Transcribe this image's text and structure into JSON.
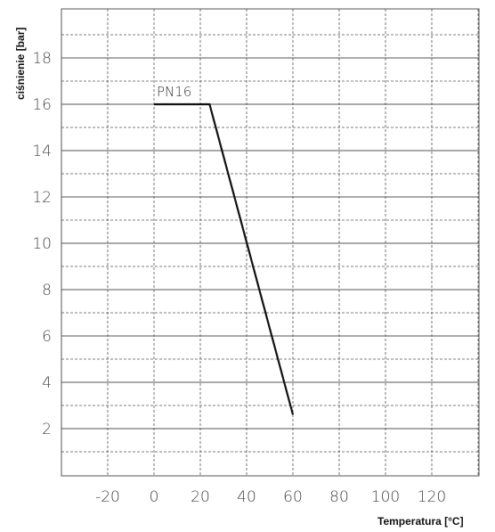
{
  "chart_data": {
    "type": "line",
    "title": "",
    "xlabel": "Temperatura [°C]",
    "ylabel": "ciśnienie [bar]",
    "xlim": [
      -40,
      140
    ],
    "ylim": [
      0,
      20
    ],
    "x_ticks": [
      "-20",
      "0",
      "20",
      "40",
      "60",
      "80",
      "100",
      "120"
    ],
    "y_ticks": [
      "2",
      "4",
      "6",
      "8",
      "10",
      "12",
      "14",
      "16",
      "18"
    ],
    "grid": true,
    "series": [
      {
        "name": "PN16",
        "x": [
          0,
          24,
          60
        ],
        "y": [
          16,
          16,
          2.6
        ]
      }
    ],
    "annotations": [
      {
        "text": "PN16",
        "x": 0,
        "y": 16
      }
    ],
    "colors": {
      "line": "#111111",
      "grid": "#555555",
      "background": "#ffffff"
    }
  }
}
